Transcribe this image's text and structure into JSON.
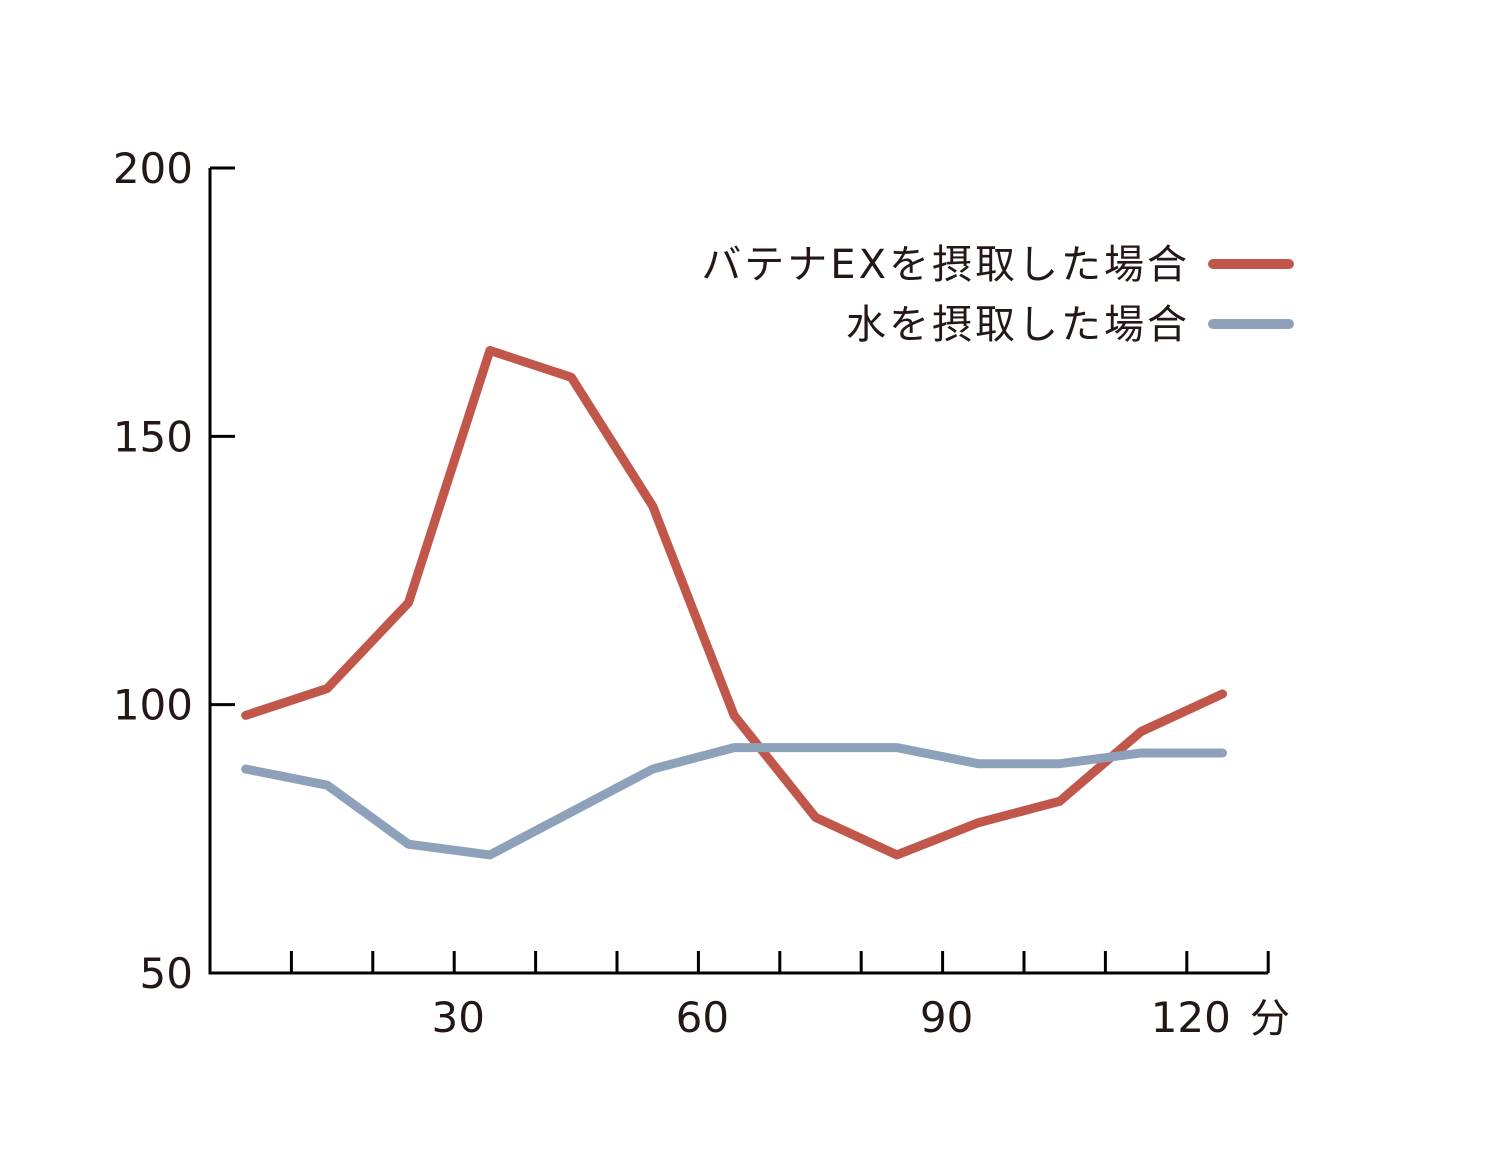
{
  "chart_data": {
    "type": "line",
    "title": "",
    "xlabel": "分",
    "ylabel": "",
    "xlim": [
      0,
      130
    ],
    "ylim": [
      50,
      200
    ],
    "yticks": [
      50,
      100,
      150,
      200
    ],
    "xtick_labels": [
      30,
      60,
      90,
      120
    ],
    "xtick_minor_step": 10,
    "grid": false,
    "legend_position": "top-right",
    "x": [
      5,
      15,
      25,
      35,
      45,
      55,
      65,
      75,
      85,
      95,
      105,
      115,
      125
    ],
    "series": [
      {
        "name": "バテナEXを摂取した場合",
        "color": "#c0574a",
        "values": [
          98,
          103,
          119,
          166,
          161,
          137,
          98,
          79,
          72,
          78,
          82,
          95,
          102
        ]
      },
      {
        "name": "水を摂取した場合",
        "color": "#8ea1ba",
        "values": [
          88,
          85,
          74,
          72,
          80,
          88,
          92,
          92,
          92,
          89,
          89,
          91,
          91
        ]
      }
    ]
  }
}
